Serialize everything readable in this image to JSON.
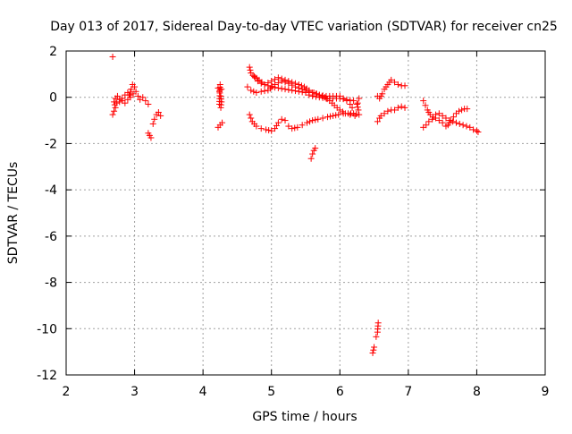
{
  "chart_data": {
    "type": "scatter",
    "title": "Day 013 of 2017, Sidereal Day-to-day VTEC variation (SDTVAR) for receiver cn25",
    "xlabel": "GPS time / hours",
    "ylabel": "SDTVAR / TECUs",
    "xlim": [
      2,
      9
    ],
    "ylim": [
      -12,
      2
    ],
    "x_ticks": [
      2,
      3,
      4,
      5,
      6,
      7,
      8,
      9
    ],
    "y_ticks": [
      2,
      0,
      -2,
      -4,
      -6,
      -8,
      -10,
      -12
    ],
    "x_tick_labels": [
      "2",
      "3",
      "4",
      "5",
      "6",
      "7",
      "8",
      "9"
    ],
    "y_tick_labels": [
      "2",
      "0",
      "-2",
      "-4",
      "-6",
      "-8",
      "-10",
      "-12"
    ],
    "grid": true,
    "marker": "+",
    "color": "#ff0000",
    "series": [
      {
        "segments": [
          [
            [
              2.68,
              1.75
            ]
          ],
          [
            [
              2.68,
              -0.75
            ],
            [
              2.7,
              -0.6
            ],
            [
              2.72,
              -0.45
            ],
            [
              2.7,
              -0.2
            ],
            [
              2.72,
              -0.05
            ],
            [
              2.75,
              0.05
            ],
            [
              2.78,
              -0.1
            ],
            [
              2.82,
              -0.15
            ],
            [
              2.86,
              -0.25
            ],
            [
              2.9,
              -0.1
            ],
            [
              2.93,
              0.1
            ],
            [
              2.95,
              0.35
            ],
            [
              2.97,
              0.55
            ],
            [
              3.0,
              0.45
            ],
            [
              3.02,
              0.25
            ],
            [
              3.05,
              0.05
            ],
            [
              3.08,
              -0.1
            ],
            [
              3.12,
              0.0
            ],
            [
              3.16,
              -0.15
            ],
            [
              3.2,
              -0.3
            ]
          ],
          [
            [
              2.74,
              -0.25
            ],
            [
              2.78,
              -0.2
            ],
            [
              2.82,
              -0.05
            ],
            [
              2.86,
              0.1
            ],
            [
              2.9,
              0.2
            ],
            [
              2.94,
              0.0
            ],
            [
              2.98,
              0.15
            ]
          ],
          [
            [
              3.2,
              -1.55
            ],
            [
              3.22,
              -1.65
            ],
            [
              3.24,
              -1.75
            ]
          ],
          [
            [
              3.27,
              -1.15
            ],
            [
              3.29,
              -0.95
            ],
            [
              3.32,
              -0.75
            ],
            [
              3.35,
              -0.65
            ],
            [
              3.38,
              -0.8
            ]
          ],
          [
            [
              4.22,
              -1.3
            ],
            [
              4.25,
              -1.2
            ],
            [
              4.28,
              -1.1
            ]
          ],
          [
            [
              4.22,
              0.4
            ],
            [
              4.24,
              0.25
            ],
            [
              4.26,
              0.05
            ],
            [
              4.27,
              -0.2
            ],
            [
              4.26,
              -0.45
            ],
            [
              4.24,
              -0.3
            ],
            [
              4.25,
              0.55
            ],
            [
              4.27,
              0.35
            ]
          ],
          [
            [
              4.68,
              1.3
            ],
            [
              4.7,
              1.05
            ],
            [
              4.73,
              0.95
            ],
            [
              4.76,
              0.85
            ],
            [
              4.8,
              0.7
            ],
            [
              4.85,
              0.6
            ],
            [
              4.9,
              0.55
            ],
            [
              4.95,
              0.5
            ],
            [
              5.0,
              0.45
            ],
            [
              5.1,
              0.4
            ],
            [
              5.2,
              0.35
            ],
            [
              5.3,
              0.3
            ],
            [
              5.4,
              0.25
            ],
            [
              5.5,
              0.2
            ],
            [
              5.55,
              0.1
            ],
            [
              5.6,
              0.05
            ],
            [
              5.7,
              0.0
            ],
            [
              5.8,
              -0.05
            ],
            [
              5.9,
              -0.05
            ],
            [
              6.0,
              -0.05
            ],
            [
              6.1,
              -0.1
            ],
            [
              6.2,
              -0.15
            ],
            [
              6.25,
              -0.3
            ],
            [
              6.27,
              -0.55
            ]
          ],
          [
            [
              4.65,
              0.45
            ],
            [
              4.7,
              0.3
            ],
            [
              4.78,
              0.2
            ],
            [
              4.85,
              0.25
            ],
            [
              4.95,
              0.3
            ],
            [
              5.05,
              0.55
            ],
            [
              5.15,
              0.7
            ],
            [
              5.25,
              0.6
            ],
            [
              5.35,
              0.45
            ],
            [
              5.45,
              0.35
            ],
            [
              5.55,
              0.25
            ],
            [
              5.6,
              0.2
            ],
            [
              5.7,
              0.1
            ],
            [
              5.8,
              0.05
            ],
            [
              5.9,
              0.05
            ],
            [
              6.0,
              0.05
            ],
            [
              6.05,
              -0.05
            ],
            [
              6.1,
              -0.15
            ],
            [
              6.15,
              -0.3
            ],
            [
              6.18,
              -0.45
            ]
          ],
          [
            [
              4.75,
              0.9
            ],
            [
              4.82,
              0.75
            ],
            [
              4.9,
              0.55
            ],
            [
              5.0,
              0.7
            ],
            [
              5.1,
              0.85
            ],
            [
              5.2,
              0.75
            ],
            [
              5.3,
              0.65
            ],
            [
              5.4,
              0.55
            ],
            [
              5.48,
              0.45
            ],
            [
              5.55,
              0.3
            ],
            [
              5.62,
              0.2
            ],
            [
              5.7,
              0.1
            ],
            [
              5.78,
              0.0
            ],
            [
              5.85,
              -0.15
            ],
            [
              5.92,
              -0.35
            ],
            [
              6.0,
              -0.55
            ],
            [
              6.08,
              -0.7
            ],
            [
              6.15,
              -0.75
            ],
            [
              6.22,
              -0.8
            ]
          ],
          [
            [
              4.68,
              -0.75
            ],
            [
              4.72,
              -1.05
            ],
            [
              4.78,
              -1.25
            ],
            [
              4.85,
              -1.35
            ],
            [
              4.92,
              -1.4
            ],
            [
              5.0,
              -1.45
            ],
            [
              5.05,
              -1.35
            ],
            [
              5.1,
              -1.1
            ],
            [
              5.15,
              -0.95
            ],
            [
              5.2,
              -1.0
            ]
          ],
          [
            [
              5.25,
              -1.25
            ],
            [
              5.3,
              -1.35
            ],
            [
              5.38,
              -1.3
            ],
            [
              5.45,
              -1.2
            ],
            [
              5.52,
              -1.1
            ],
            [
              5.6,
              -1.0
            ],
            [
              5.68,
              -0.95
            ],
            [
              5.75,
              -0.9
            ],
            [
              5.82,
              -0.85
            ],
            [
              5.9,
              -0.8
            ],
            [
              5.98,
              -0.75
            ],
            [
              6.05,
              -0.7
            ],
            [
              6.12,
              -0.7
            ],
            [
              6.2,
              -0.7
            ],
            [
              6.28,
              -0.75
            ]
          ],
          [
            [
              5.58,
              -2.65
            ],
            [
              5.6,
              -2.45
            ],
            [
              5.62,
              -2.3
            ],
            [
              5.64,
              -2.2
            ]
          ],
          [
            [
              6.28,
              -0.05
            ],
            [
              6.26,
              -0.25
            ]
          ],
          [
            [
              6.48,
              -11.05
            ],
            [
              6.5,
              -10.8
            ]
          ],
          [
            [
              6.53,
              -10.35
            ],
            [
              6.55,
              -10.15
            ],
            [
              6.56,
              -9.75
            ]
          ],
          [
            [
              6.55,
              0.05
            ],
            [
              6.58,
              -0.05
            ],
            [
              6.62,
              0.15
            ],
            [
              6.65,
              0.35
            ],
            [
              6.7,
              0.55
            ],
            [
              6.75,
              0.75
            ],
            [
              6.8,
              0.65
            ],
            [
              6.85,
              0.55
            ],
            [
              6.9,
              0.5
            ],
            [
              6.95,
              0.5
            ]
          ],
          [
            [
              6.55,
              -1.05
            ],
            [
              6.58,
              -0.9
            ],
            [
              6.6,
              -0.8
            ],
            [
              6.65,
              -0.7
            ],
            [
              6.7,
              -0.6
            ],
            [
              6.75,
              -0.55
            ],
            [
              6.8,
              -0.55
            ],
            [
              6.85,
              -0.45
            ],
            [
              6.9,
              -0.4
            ],
            [
              6.95,
              -0.45
            ]
          ],
          [
            [
              7.22,
              -0.15
            ],
            [
              7.25,
              -0.35
            ],
            [
              7.28,
              -0.55
            ],
            [
              7.32,
              -0.75
            ],
            [
              7.36,
              -0.85
            ],
            [
              7.4,
              -0.75
            ],
            [
              7.45,
              -0.7
            ],
            [
              7.5,
              -0.8
            ],
            [
              7.55,
              -0.9
            ],
            [
              7.6,
              -1.0
            ],
            [
              7.65,
              -1.05
            ],
            [
              7.7,
              -1.1
            ],
            [
              7.75,
              -1.15
            ],
            [
              7.8,
              -1.2
            ],
            [
              7.85,
              -1.25
            ],
            [
              7.9,
              -1.3
            ],
            [
              7.95,
              -1.4
            ],
            [
              8.0,
              -1.45
            ],
            [
              8.02,
              -1.5
            ]
          ],
          [
            [
              7.22,
              -1.3
            ],
            [
              7.26,
              -1.2
            ],
            [
              7.3,
              -1.05
            ],
            [
              7.35,
              -0.95
            ],
            [
              7.4,
              -0.9
            ],
            [
              7.45,
              -1.0
            ],
            [
              7.5,
              -1.1
            ],
            [
              7.55,
              -1.25
            ],
            [
              7.58,
              -1.2
            ],
            [
              7.62,
              -1.0
            ],
            [
              7.66,
              -0.85
            ],
            [
              7.7,
              -0.7
            ],
            [
              7.74,
              -0.6
            ],
            [
              7.78,
              -0.55
            ],
            [
              7.82,
              -0.5
            ],
            [
              7.86,
              -0.5
            ]
          ]
        ]
      }
    ]
  }
}
